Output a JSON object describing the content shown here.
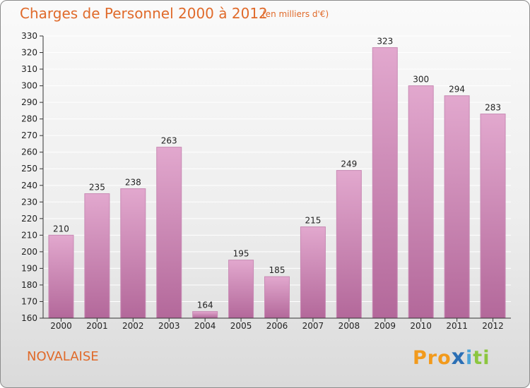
{
  "title": "Charges de Personnel 2000 à 2012",
  "subtitle": "(en milliers d'€)",
  "commune": "NOVALAISE",
  "brand": {
    "p1": "Pro",
    "x": "x",
    "p2": "i",
    "p3": "ti"
  },
  "chart_data": {
    "type": "bar",
    "title": "Charges de Personnel 2000 à 2012",
    "subtitle": "(en milliers d'€)",
    "xlabel": "",
    "ylabel": "",
    "categories": [
      "2000",
      "2001",
      "2002",
      "2003",
      "2004",
      "2005",
      "2006",
      "2007",
      "2008",
      "2009",
      "2010",
      "2011",
      "2012"
    ],
    "values": [
      210,
      235,
      238,
      263,
      164,
      195,
      185,
      215,
      249,
      323,
      300,
      294,
      283
    ],
    "ylim": [
      160,
      330
    ],
    "yticks": [
      160,
      170,
      180,
      190,
      200,
      210,
      220,
      230,
      240,
      250,
      260,
      270,
      280,
      290,
      300,
      310,
      320,
      330
    ],
    "grid": true,
    "legend": "none",
    "colors": {
      "bar_top": "#e2a8ce",
      "bar_bottom": "#b3689a",
      "grid": "#ffffff",
      "title": "#e06a2a"
    }
  }
}
